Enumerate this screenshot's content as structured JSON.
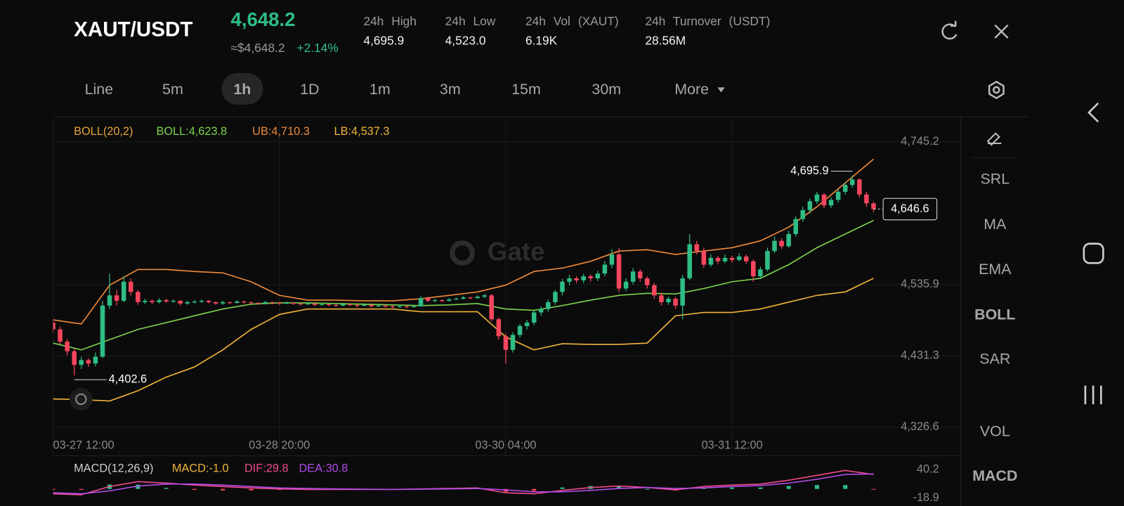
{
  "header": {
    "pair": "XAUT/USDT",
    "price": "4,648.2",
    "approx": "≈$4,648.2",
    "change": "+2.14%",
    "stats": [
      {
        "label": "24h High",
        "value": "4,695.9"
      },
      {
        "label": "24h Low",
        "value": "4,523.0"
      },
      {
        "label": "24h Vol (XAUT)",
        "value": "6.19K"
      },
      {
        "label": "24h Turnover (USDT)",
        "value": "28.56M"
      }
    ]
  },
  "timeframes": [
    "Line",
    "5m",
    "1h",
    "1D",
    "1m",
    "3m",
    "15m",
    "30m",
    "More"
  ],
  "tools": [
    "SRL",
    "MA",
    "EMA",
    "BOLL",
    "SAR",
    "VOL",
    "MACD"
  ],
  "watermark": "Gate",
  "chart_data": [
    {
      "type": "candlestick",
      "up_color": "#2ebd85",
      "down_color": "#f6465d",
      "grid": true,
      "legend": [
        {
          "text": "BOLL(20,2)",
          "color": "#e8a33a"
        },
        {
          "text": "BOLL:4,623.8",
          "color": "#7bd44e"
        },
        {
          "text": "UB:4,710.3",
          "color": "#f08a3a"
        },
        {
          "text": "LB:4,537.3",
          "color": "#f0b43a"
        }
      ],
      "annotations": {
        "high": "4,695.9",
        "low": "4,402.6",
        "last": "4,646.6"
      },
      "xlim": [
        0,
        128.3
      ],
      "xticks": [
        {
          "value": 0,
          "label": "03-27 12:00"
        },
        {
          "value": 32,
          "label": "03-28 20:00"
        },
        {
          "value": 64,
          "label": "03-30 04:00"
        },
        {
          "value": 96,
          "label": "03-31 12:00"
        }
      ],
      "ylim": [
        4317.1,
        4779.9
      ],
      "yticks": [
        {
          "value": 4326.6,
          "label": "4,326.6"
        },
        {
          "value": 4431.3,
          "label": "4,431.3"
        },
        {
          "value": 4535.9,
          "label": "4,535.9"
        },
        {
          "value": 4745.2,
          "label": "4,745.2"
        }
      ],
      "ohlc": [
        [
          4480,
          4485,
          4465,
          4470
        ],
        [
          4470,
          4474,
          4448,
          4452
        ],
        [
          4452,
          4456,
          4432,
          4438
        ],
        [
          4438,
          4442,
          4402.6,
          4418
        ],
        [
          4418,
          4430,
          4412,
          4425
        ],
        [
          4425,
          4428,
          4415,
          4420
        ],
        [
          4420,
          4436,
          4416,
          4430
        ],
        [
          4430,
          4512,
          4428,
          4505
        ],
        [
          4505,
          4552,
          4500,
          4520
        ],
        [
          4520,
          4528,
          4505,
          4512
        ],
        [
          4512,
          4548,
          4510,
          4540
        ],
        [
          4540,
          4545,
          4520,
          4525
        ],
        [
          4525,
          4528,
          4506,
          4510
        ],
        [
          4510,
          4515,
          4507,
          4512
        ],
        [
          4512,
          4514,
          4507,
          4510
        ],
        [
          4510,
          4516,
          4508,
          4513
        ],
        [
          4513,
          4515,
          4509,
          4511
        ],
        [
          4511,
          4514,
          4509,
          4512
        ],
        [
          4512,
          4513,
          4505,
          4508
        ],
        [
          4508,
          4512,
          4506,
          4510
        ],
        [
          4510,
          4513,
          4508,
          4511
        ],
        [
          4511,
          4514,
          4509,
          4512
        ],
        [
          4512,
          4513,
          4508,
          4510
        ],
        [
          4510,
          4511,
          4506,
          4508
        ],
        [
          4508,
          4512,
          4506,
          4510
        ],
        [
          4510,
          4511,
          4507,
          4509
        ],
        [
          4509,
          4513,
          4508,
          4511
        ],
        [
          4511,
          4512,
          4508,
          4510
        ],
        [
          4510,
          4511,
          4507,
          4509
        ],
        [
          4509,
          4510,
          4506,
          4508
        ],
        [
          4508,
          4512,
          4507,
          4510
        ],
        [
          4510,
          4511,
          4507,
          4509
        ],
        [
          4509,
          4510,
          4506,
          4508
        ],
        [
          4508,
          4511,
          4507,
          4509
        ],
        [
          4509,
          4510,
          4506,
          4508
        ],
        [
          4508,
          4509,
          4505,
          4507
        ],
        [
          4507,
          4510,
          4506,
          4508
        ],
        [
          4508,
          4509,
          4504,
          4506
        ],
        [
          4506,
          4509,
          4505,
          4507
        ],
        [
          4507,
          4508,
          4504,
          4506
        ],
        [
          4506,
          4507,
          4503,
          4505
        ],
        [
          4505,
          4509,
          4504,
          4507
        ],
        [
          4507,
          4508,
          4504,
          4506
        ],
        [
          4506,
          4507,
          4502,
          4505
        ],
        [
          4505,
          4508,
          4504,
          4506
        ],
        [
          4506,
          4507,
          4502,
          4504
        ],
        [
          4504,
          4507,
          4503,
          4505
        ],
        [
          4505,
          4506,
          4502,
          4504
        ],
        [
          4504,
          4505,
          4500,
          4503
        ],
        [
          4503,
          4506,
          4502,
          4504
        ],
        [
          4504,
          4505,
          4501,
          4503
        ],
        [
          4503,
          4506,
          4502,
          4504
        ],
        [
          4504,
          4519,
          4503,
          4516
        ],
        [
          4516,
          4518,
          4510,
          4512
        ],
        [
          4512,
          4515,
          4510,
          4513
        ],
        [
          4513,
          4514,
          4510,
          4512
        ],
        [
          4512,
          4516,
          4511,
          4514
        ],
        [
          4514,
          4517,
          4513,
          4515
        ],
        [
          4515,
          4519,
          4514,
          4517
        ],
        [
          4517,
          4518,
          4514,
          4516
        ],
        [
          4516,
          4520,
          4515,
          4518
        ],
        [
          4518,
          4522,
          4516,
          4520
        ],
        [
          4520,
          4522,
          4482,
          4485
        ],
        [
          4485,
          4488,
          4455,
          4460
        ],
        [
          4460,
          4464,
          4420,
          4440
        ],
        [
          4440,
          4466,
          4436,
          4462
        ],
        [
          4462,
          4478,
          4458,
          4475
        ],
        [
          4475,
          4484,
          4470,
          4480
        ],
        [
          4480,
          4498,
          4476,
          4495
        ],
        [
          4495,
          4504,
          4490,
          4500
        ],
        [
          4500,
          4514,
          4496,
          4510
        ],
        [
          4510,
          4528,
          4506,
          4525
        ],
        [
          4525,
          4544,
          4520,
          4540
        ],
        [
          4540,
          4550,
          4535,
          4545
        ],
        [
          4545,
          4548,
          4538,
          4542
        ],
        [
          4542,
          4552,
          4538,
          4548
        ],
        [
          4548,
          4551,
          4540,
          4545
        ],
        [
          4545,
          4556,
          4541,
          4552
        ],
        [
          4552,
          4570,
          4548,
          4565
        ],
        [
          4565,
          4588,
          4560,
          4580
        ],
        [
          4580,
          4590,
          4525,
          4530
        ],
        [
          4530,
          4545,
          4526,
          4540
        ],
        [
          4540,
          4560,
          4536,
          4555
        ],
        [
          4555,
          4558,
          4540,
          4545
        ],
        [
          4545,
          4548,
          4530,
          4535
        ],
        [
          4535,
          4538,
          4515,
          4520
        ],
        [
          4520,
          4524,
          4505,
          4510
        ],
        [
          4510,
          4518,
          4506,
          4515
        ],
        [
          4515,
          4518,
          4500,
          4505
        ],
        [
          4505,
          4550,
          4485,
          4545
        ],
        [
          4545,
          4610,
          4542,
          4595
        ],
        [
          4595,
          4600,
          4580,
          4585
        ],
        [
          4585,
          4590,
          4560,
          4565
        ],
        [
          4565,
          4580,
          4562,
          4575
        ],
        [
          4575,
          4578,
          4566,
          4570
        ],
        [
          4570,
          4580,
          4567,
          4575
        ],
        [
          4575,
          4578,
          4568,
          4572
        ],
        [
          4572,
          4582,
          4570,
          4577
        ],
        [
          4577,
          4580,
          4566,
          4570
        ],
        [
          4570,
          4573,
          4540,
          4548
        ],
        [
          4548,
          4562,
          4544,
          4558
        ],
        [
          4558,
          4590,
          4555,
          4585
        ],
        [
          4585,
          4606,
          4582,
          4600
        ],
        [
          4600,
          4604,
          4588,
          4592
        ],
        [
          4592,
          4615,
          4590,
          4610
        ],
        [
          4610,
          4636,
          4606,
          4632
        ],
        [
          4632,
          4650,
          4628,
          4645
        ],
        [
          4645,
          4662,
          4640,
          4658
        ],
        [
          4658,
          4672,
          4654,
          4668
        ],
        [
          4668,
          4670,
          4648,
          4652
        ],
        [
          4652,
          4664,
          4648,
          4660
        ],
        [
          4660,
          4676,
          4656,
          4672
        ],
        [
          4672,
          4686,
          4668,
          4682
        ],
        [
          4682,
          4695.9,
          4678,
          4690
        ],
        [
          4690,
          4692,
          4664,
          4668
        ],
        [
          4668,
          4672,
          4650,
          4655
        ],
        [
          4655,
          4658,
          4642,
          4646.6
        ]
      ],
      "boll": {
        "x": [
          0,
          4,
          8,
          12,
          16,
          20,
          24,
          28,
          32,
          36,
          40,
          44,
          48,
          52,
          56,
          60,
          64,
          68,
          72,
          76,
          80,
          84,
          88,
          92,
          96,
          100,
          104,
          108,
          112,
          116
        ],
        "series": [
          {
            "color": "#f08a3a",
            "values": [
              4484,
              4478,
              4535,
              4558,
              4558,
              4555,
              4553,
              4540,
              4520,
              4513,
              4513,
              4512,
              4512,
              4515,
              4520,
              4525,
              4535,
              4555,
              4560,
              4570,
              4585,
              4587,
              4580,
              4585,
              4590,
              4600,
              4620,
              4650,
              4685,
              4720
            ]
          },
          {
            "color": "#7bd44e",
            "values": [
              4450,
              4440,
              4455,
              4470,
              4480,
              4490,
              4500,
              4507,
              4509,
              4509,
              4508,
              4507,
              4506,
              4505,
              4506,
              4508,
              4500,
              4498,
              4505,
              4513,
              4520,
              4523,
              4522,
              4530,
              4540,
              4545,
              4565,
              4590,
              4610,
              4630
            ]
          },
          {
            "color": "#f0b43a",
            "values": [
              4368,
              4367,
              4365,
              4380,
              4400,
              4415,
              4440,
              4470,
              4492,
              4500,
              4500,
              4500,
              4500,
              4496,
              4496,
              4496,
              4459,
              4440,
              4449,
              4448,
              4448,
              4450,
              4490,
              4495,
              4495,
              4500,
              4510,
              4520,
              4525,
              4545
            ]
          }
        ]
      }
    },
    {
      "type": "macd",
      "legend": [
        {
          "text": "MACD(12,26,9)",
          "color": "#cfcfcf"
        },
        {
          "text": "MACD:-1.0",
          "color": "#f0b43a"
        },
        {
          "text": "DIF:29.8",
          "color": "#ee4a8e"
        },
        {
          "text": "DEA:30.8",
          "color": "#b04ce6"
        }
      ],
      "xlim": [
        0,
        128.3
      ],
      "ylim": [
        -33.7,
        59.4
      ],
      "yticks": [
        40.2,
        -18.9
      ],
      "x": [
        0,
        4,
        8,
        12,
        16,
        20,
        24,
        28,
        32,
        36,
        40,
        44,
        48,
        52,
        56,
        60,
        64,
        68,
        72,
        76,
        80,
        84,
        88,
        92,
        96,
        100,
        104,
        108,
        112,
        116
      ],
      "series": [
        {
          "color": "#ee4a8e",
          "values": [
            -10,
            -12,
            5,
            15,
            12,
            8,
            5,
            2,
            0,
            -1,
            -1,
            -1,
            -1,
            0,
            1,
            2,
            -8,
            -10,
            -3,
            3,
            6,
            3,
            -2,
            5,
            8,
            10,
            18,
            28,
            38,
            29.8
          ]
        },
        {
          "color": "#b04ce6",
          "values": [
            -8,
            -10,
            -4,
            6,
            10,
            10,
            8,
            5,
            2,
            1,
            0,
            -0.5,
            -1,
            -0.5,
            0,
            1,
            -2,
            -6,
            -6,
            -3,
            1,
            3,
            1,
            2,
            5,
            7,
            12,
            20,
            30,
            30.8
          ]
        }
      ],
      "histogram": [
        -2,
        -2,
        9,
        9,
        2,
        -2,
        -3,
        -3,
        -2,
        -2,
        -1,
        -0.5,
        0,
        0.5,
        1,
        1,
        -6,
        -4,
        3,
        6,
        5,
        0,
        -3,
        3,
        3,
        3,
        6,
        8,
        8,
        -1.0
      ]
    }
  ]
}
